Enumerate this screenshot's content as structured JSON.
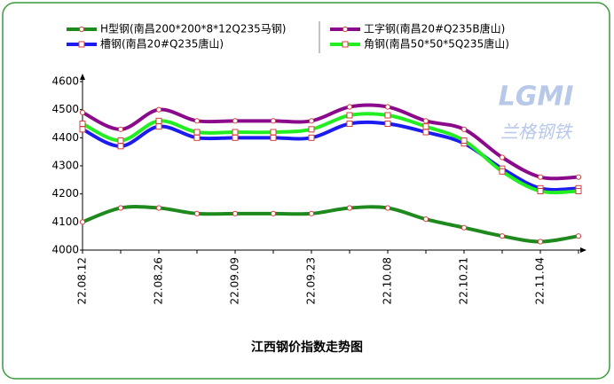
{
  "chart_data": {
    "type": "line",
    "title": "江西钢价指数走势图",
    "watermark": "LGMI",
    "watermark_sub": "兰格钢铁",
    "categories": [
      "22.08.12",
      null,
      "22.08.26",
      null,
      "22.09.09",
      null,
      "22.09.23",
      null,
      "22.10.08",
      null,
      "22.10.21",
      null,
      "22.11.04",
      null
    ],
    "ylim": [
      4000,
      4600
    ],
    "yticks": [
      4000,
      4100,
      4200,
      4300,
      4400,
      4500,
      4600
    ],
    "grid": false,
    "series": [
      {
        "name": "H型钢(南昌200*200*8*12Q235马钢)",
        "color": "#1e8a1e",
        "values": [
          4100,
          4150,
          4150,
          4130,
          4130,
          4130,
          4130,
          4150,
          4150,
          4110,
          4080,
          4050,
          4030,
          4050
        ]
      },
      {
        "name": "工字钢(南昌20#Q235B唐山)",
        "color": "#8b0a8b",
        "values": [
          4490,
          4430,
          4500,
          4460,
          4460,
          4460,
          4460,
          4510,
          4510,
          4460,
          4430,
          4330,
          4260,
          4260
        ]
      },
      {
        "name": "槽钢(南昌20#Q235唐山)",
        "color": "#1c1cf0",
        "values": [
          4430,
          4370,
          4440,
          4400,
          4400,
          4400,
          4400,
          4450,
          4450,
          4420,
          4380,
          4290,
          4220,
          4220
        ]
      },
      {
        "name": "角钢(南昌50*50*5Q235唐山)",
        "color": "#22ee22",
        "values": [
          4450,
          4390,
          4460,
          4420,
          4420,
          4420,
          4430,
          4480,
          4480,
          4440,
          4390,
          4280,
          4210,
          4210
        ]
      }
    ]
  }
}
